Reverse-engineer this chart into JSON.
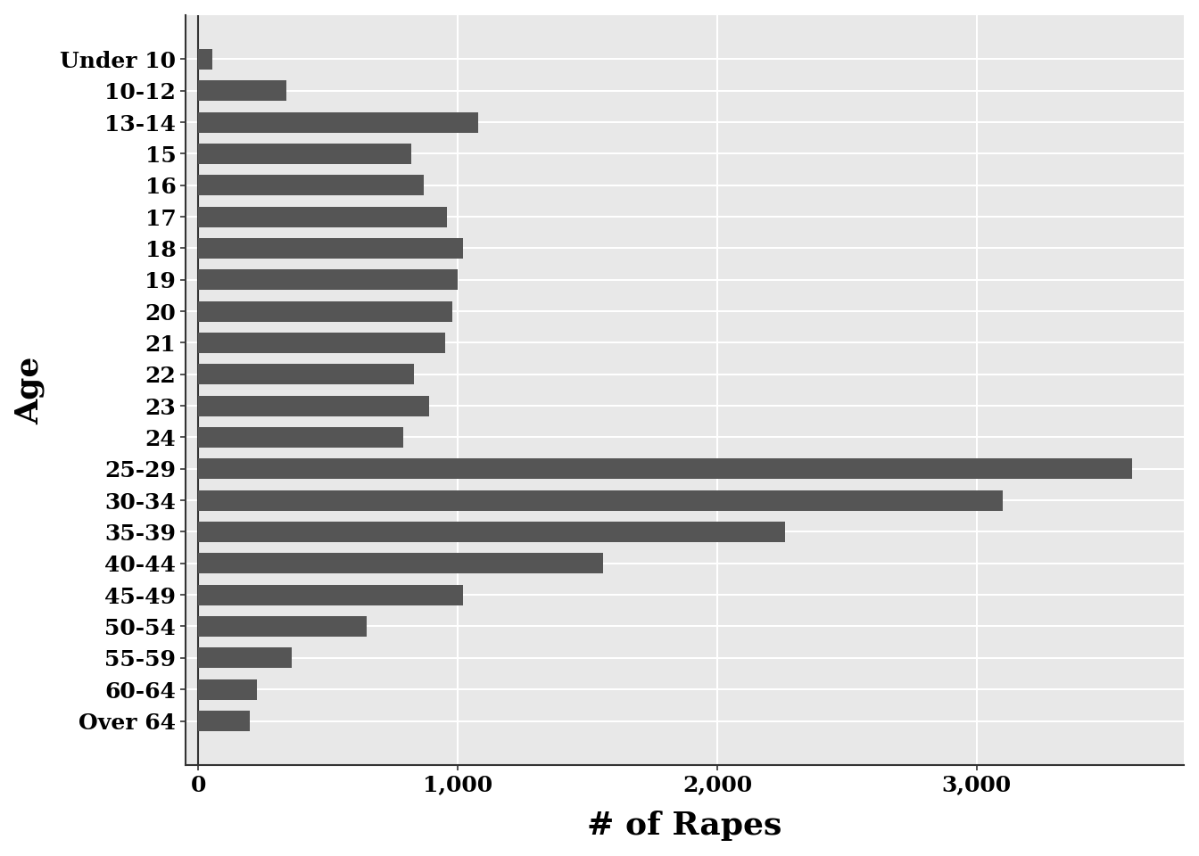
{
  "categories": [
    "Under 10",
    "10-12",
    "13-14",
    "15",
    "16",
    "17",
    "18",
    "19",
    "20",
    "21",
    "22",
    "23",
    "24",
    "25-29",
    "30-34",
    "35-39",
    "40-44",
    "45-49",
    "50-54",
    "55-59",
    "60-64",
    "Over 64"
  ],
  "values": [
    55,
    340,
    1080,
    820,
    870,
    960,
    1020,
    1000,
    980,
    950,
    830,
    890,
    790,
    3600,
    3100,
    2260,
    1560,
    1020,
    650,
    360,
    225,
    200
  ],
  "bar_color": "#555555",
  "xlabel": "# of Rapes",
  "ylabel": "Age",
  "xlim": [
    -50,
    3800
  ],
  "xticks": [
    0,
    1000,
    2000,
    3000
  ],
  "xticklabels": [
    "0",
    "1,000",
    "2,000",
    "3,000"
  ],
  "plot_bg_color": "#e8e8e8",
  "fig_bg_color": "#ffffff",
  "grid_color": "#ffffff",
  "xlabel_fontsize": 26,
  "ylabel_fontsize": 26,
  "tick_fontsize": 18,
  "label_fontweight": "bold"
}
